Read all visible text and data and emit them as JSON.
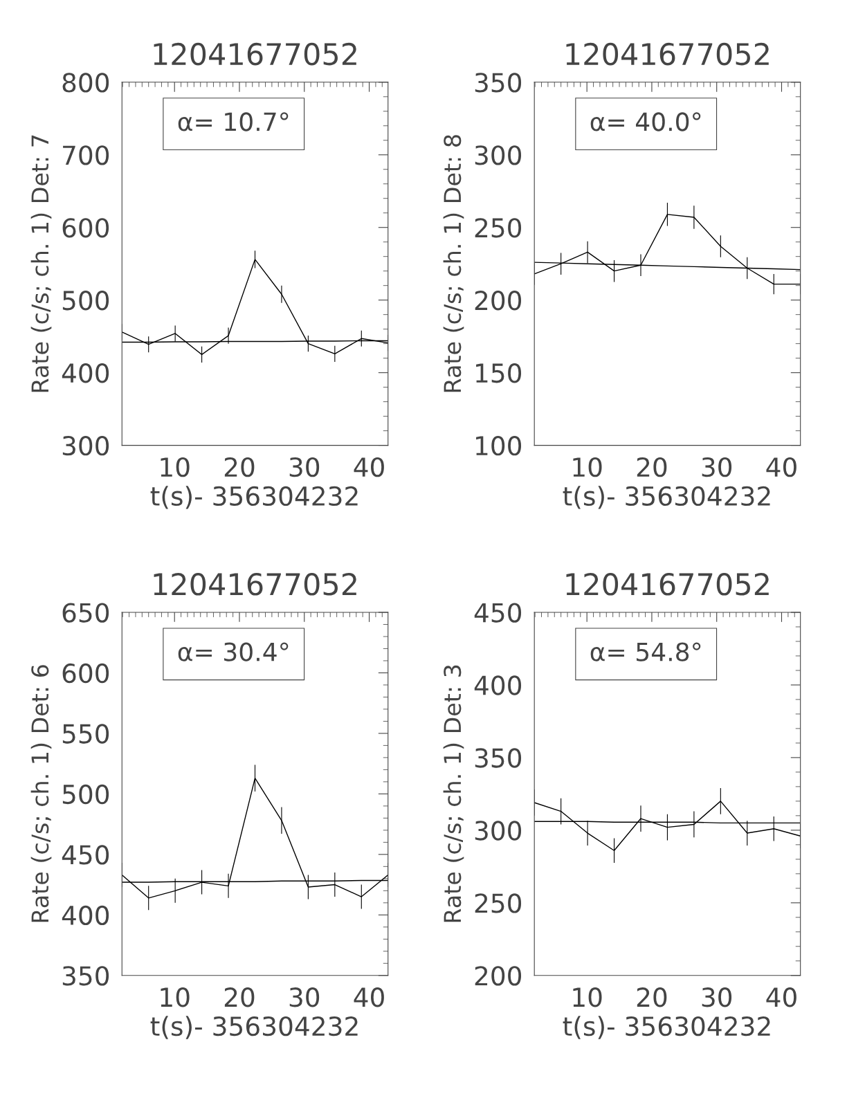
{
  "chart_data": [
    {
      "type": "line",
      "title": "12041677052",
      "xlabel": "t(s)- 356304232",
      "ylabel": "Rate (c/s; ch. 1) Det: 7",
      "xlim": [
        1.9,
        42.9
      ],
      "xticks": [
        10,
        20,
        30,
        40
      ],
      "ylim": [
        300,
        800
      ],
      "yticks": [
        300,
        400,
        500,
        600,
        700,
        800
      ],
      "marker": "none",
      "line_style": "solid",
      "annotations": [
        "α= 10.7°"
      ],
      "x": [
        1.9,
        6.0,
        10.1,
        14.2,
        18.3,
        22.4,
        26.5,
        30.6,
        34.7,
        38.8,
        42.9
      ],
      "series": [
        {
          "color": "#000000",
          "values": [
            456,
            439,
            454,
            425,
            451,
            556,
            508,
            440,
            426,
            447,
            441
          ],
          "errors": [
            11,
            11,
            11,
            11,
            11,
            12,
            12,
            11,
            11,
            11,
            11
          ]
        },
        {
          "type": "line",
          "color": "#000000",
          "values": [
            442,
            442,
            442.5,
            442.5,
            443,
            443,
            443,
            443.5,
            443.5,
            444,
            444
          ]
        }
      ]
    },
    {
      "type": "line",
      "title": "12041677052",
      "xlabel": "t(s)- 356304232",
      "ylabel": "Rate (c/s; ch. 1) Det: 8",
      "xlim": [
        1.9,
        42.9
      ],
      "xticks": [
        10,
        20,
        30,
        40
      ],
      "ylim": [
        100,
        350
      ],
      "yticks": [
        100,
        150,
        200,
        250,
        300,
        350
      ],
      "marker": "none",
      "line_style": "solid",
      "annotations": [
        "α= 40.0°"
      ],
      "x": [
        1.9,
        6.0,
        10.1,
        14.2,
        18.3,
        22.4,
        26.5,
        30.6,
        34.7,
        38.8,
        42.9
      ],
      "series": [
        {
          "color": "#000000",
          "values": [
            218,
            225,
            233,
            220,
            224,
            259,
            257,
            237,
            222,
            211,
            211
          ],
          "errors": [
            7.5,
            7.5,
            7.5,
            7.5,
            7.5,
            8,
            8,
            7.5,
            7.5,
            7,
            7
          ]
        },
        {
          "type": "line",
          "color": "#000000",
          "values": [
            226,
            225.5,
            225,
            224.5,
            224,
            223.5,
            223,
            222.5,
            222,
            221.5,
            221
          ]
        }
      ]
    },
    {
      "type": "line",
      "title": "12041677052",
      "xlabel": "t(s)- 356304232",
      "ylabel": "Rate (c/s; ch. 1) Det: 6",
      "xlim": [
        1.9,
        42.9
      ],
      "xticks": [
        10,
        20,
        30,
        40
      ],
      "ylim": [
        350,
        650
      ],
      "yticks": [
        350,
        400,
        450,
        500,
        550,
        600,
        650
      ],
      "marker": "none",
      "line_style": "solid",
      "annotations": [
        "α= 30.4°"
      ],
      "x": [
        1.9,
        6.0,
        10.1,
        14.2,
        18.3,
        22.4,
        26.5,
        30.6,
        34.7,
        38.8,
        42.9
      ],
      "series": [
        {
          "color": "#000000",
          "values": [
            433,
            414,
            420,
            427,
            424,
            513,
            478,
            423,
            425,
            415,
            433
          ],
          "errors": [
            10,
            10,
            10,
            10,
            10,
            11,
            11,
            10,
            10,
            10,
            10
          ]
        },
        {
          "type": "line",
          "color": "#000000",
          "values": [
            427,
            427,
            427.5,
            427.5,
            427.5,
            427.5,
            428,
            428,
            428,
            428.5,
            428.5
          ]
        }
      ]
    },
    {
      "type": "line",
      "title": "12041677052",
      "xlabel": "t(s)- 356304232",
      "ylabel": "Rate (c/s; ch. 1) Det: 3",
      "xlim": [
        1.9,
        42.9
      ],
      "xticks": [
        10,
        20,
        30,
        40
      ],
      "ylim": [
        200,
        450
      ],
      "yticks": [
        200,
        250,
        300,
        350,
        400,
        450
      ],
      "marker": "none",
      "line_style": "solid",
      "annotations": [
        "α= 54.8°"
      ],
      "x": [
        1.9,
        6.0,
        10.1,
        14.2,
        18.3,
        22.4,
        26.5,
        30.6,
        34.7,
        38.8,
        42.9
      ],
      "series": [
        {
          "color": "#000000",
          "values": [
            319,
            313,
            298,
            286,
            308,
            302,
            304,
            320,
            298,
            301,
            296
          ],
          "errors": [
            9,
            9,
            8.5,
            8.5,
            9,
            9,
            9,
            9,
            8.5,
            8.5,
            8.5
          ]
        },
        {
          "type": "line",
          "color": "#000000",
          "values": [
            306,
            306,
            306,
            305.5,
            305.5,
            305.5,
            305.5,
            305,
            305,
            305,
            305
          ]
        }
      ]
    }
  ]
}
